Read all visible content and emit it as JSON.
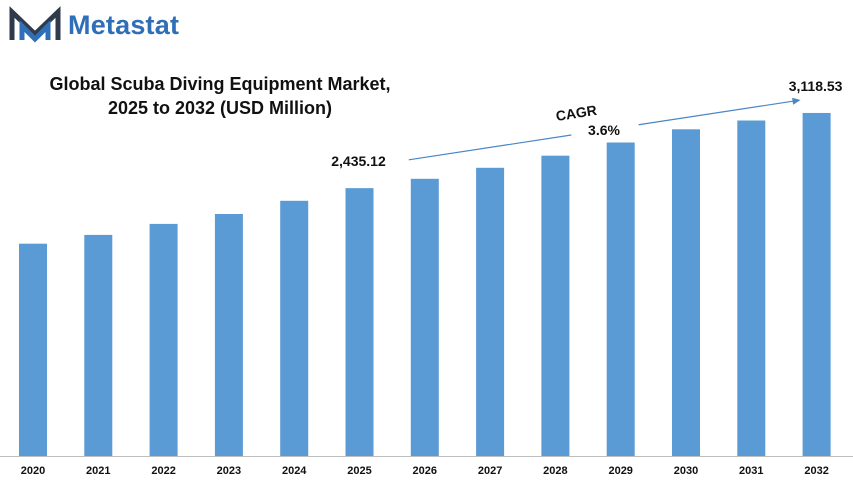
{
  "brand": {
    "name": "Metastat",
    "logo_icon": "metastat-m-logo-icon",
    "color": "#2e6fb7"
  },
  "chart_data": {
    "type": "bar",
    "title_line1": "Global Scuba Diving Equipment Market,",
    "title_line2": "2025 to 2032 (USD Million)",
    "categories": [
      "2020",
      "2021",
      "2022",
      "2023",
      "2024",
      "2025",
      "2026",
      "2027",
      "2028",
      "2029",
      "2030",
      "2031",
      "2032"
    ],
    "values": [
      1930,
      2010,
      2110,
      2200,
      2320,
      2435.12,
      2520,
      2620,
      2730,
      2850,
      2970,
      3050,
      3118.53
    ],
    "annotations": [
      {
        "category": "2025",
        "label": "2,435.12"
      },
      {
        "category": "2032",
        "label": "3,118.53"
      }
    ],
    "cagr_label": "CAGR",
    "cagr_value": "3.6%",
    "bar_color": "#5b9bd5",
    "arrow_color": "#4a86c5",
    "axis_color": "#bfbfbf",
    "ylim": [
      0,
      3600
    ],
    "grid": false,
    "legend": "none"
  }
}
